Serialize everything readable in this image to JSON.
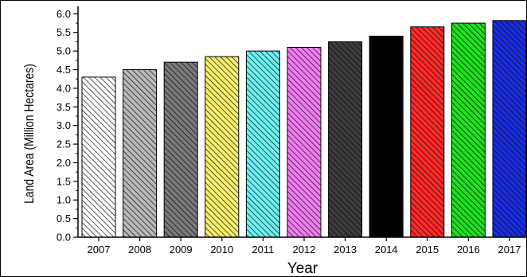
{
  "chart_data": {
    "type": "bar",
    "categories": [
      "2007",
      "2008",
      "2009",
      "2010",
      "2011",
      "2012",
      "2013",
      "2014",
      "2015",
      "2016",
      "2017"
    ],
    "values": [
      4.3,
      4.5,
      4.7,
      4.85,
      5.0,
      5.1,
      5.25,
      5.4,
      5.65,
      5.75,
      5.82
    ],
    "bar_fills": [
      "#ffffff",
      "#b9b9b9",
      "#7a7a7a",
      "#f6ef6e",
      "#6ff0f0",
      "#f07ef0",
      "#3d3d3d",
      "#000000",
      "#ff2a2a",
      "#21e021",
      "#1a2ee0"
    ],
    "hatched": true,
    "title": "",
    "xlabel": "Year",
    "ylabel": "Land Area (Million Hectares)",
    "ylim": [
      0,
      6.2
    ],
    "yticks": [
      "0.0",
      "0.5",
      "1.0",
      "1.5",
      "2.0",
      "2.5",
      "3.0",
      "3.5",
      "4.0",
      "4.5",
      "5.0",
      "5.5",
      "6.0"
    ],
    "grid": false,
    "legend": "none"
  }
}
